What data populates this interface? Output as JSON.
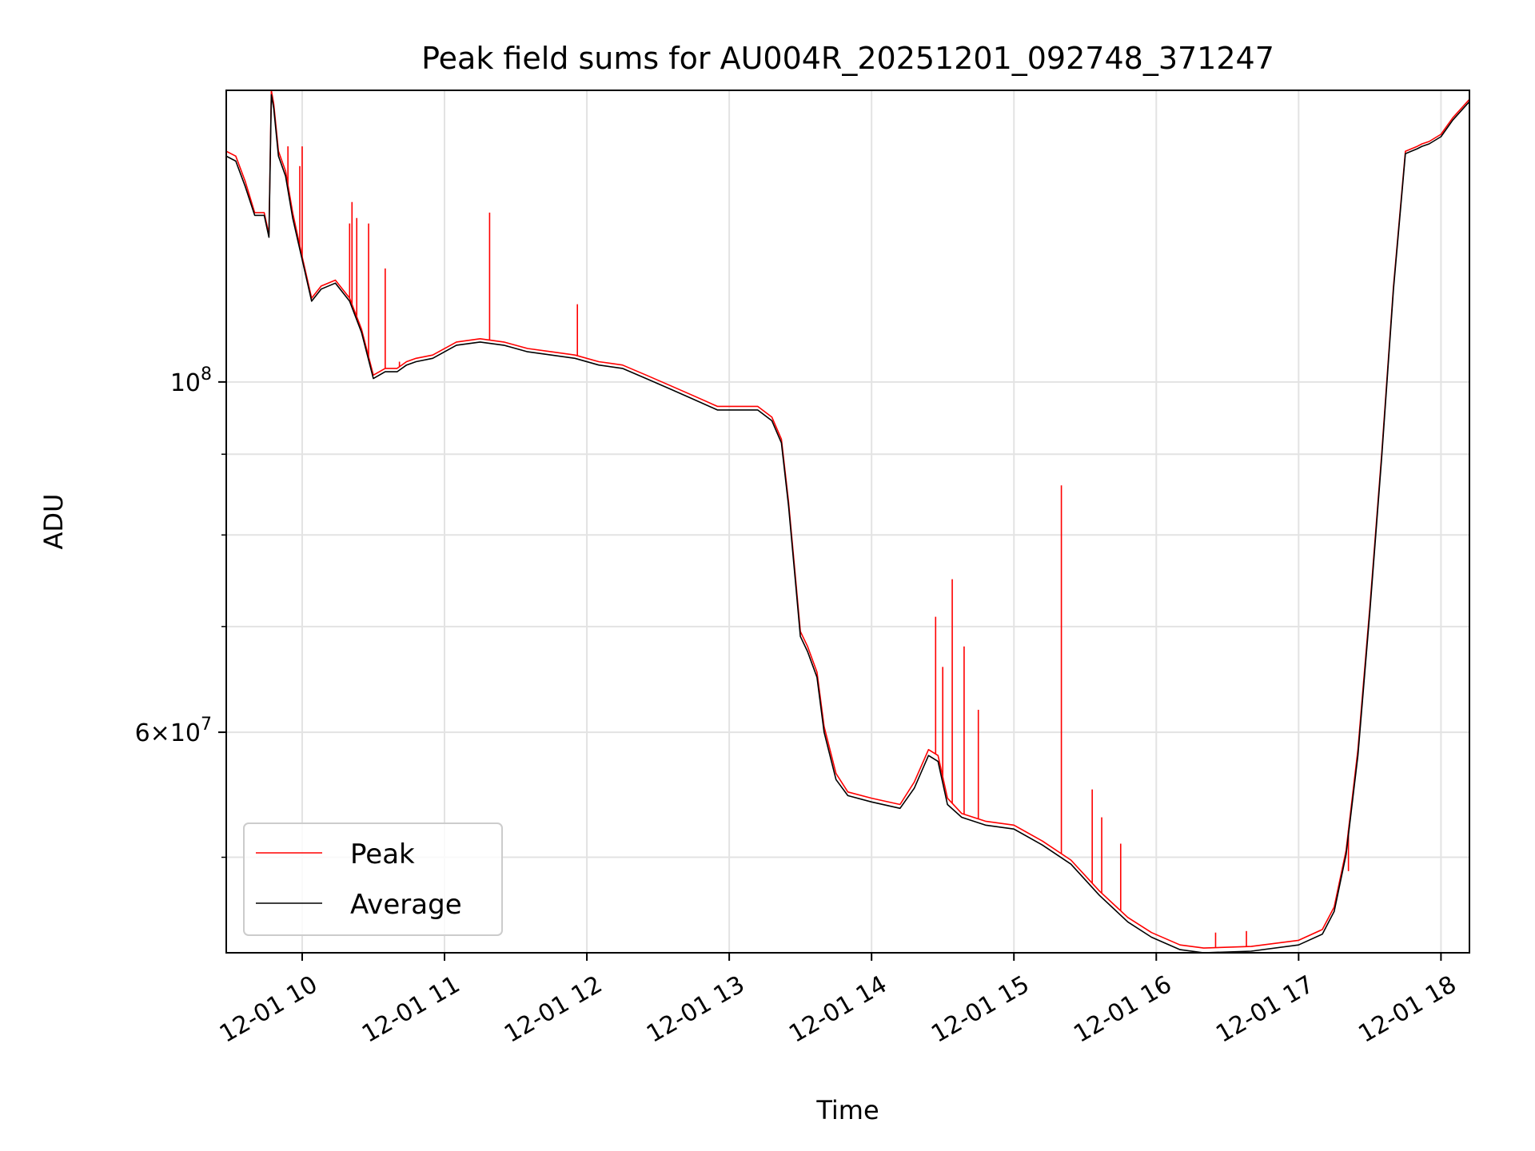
{
  "chart_data": {
    "type": "line",
    "title": "Peak field sums for AU004R_20251201_092748_371247",
    "xlabel": "Time",
    "ylabel": "ADU",
    "yscale": "log",
    "ylim": [
      43500000,
      153000000
    ],
    "xlim": [
      "12-01 09:28",
      "12-01 18:12"
    ],
    "grid": true,
    "legend": {
      "placement": "lower-left",
      "entries": [
        "Peak",
        "Average"
      ]
    },
    "x_ticks": [
      "12-01 10",
      "12-01 11",
      "12-01 12",
      "12-01 13",
      "12-01 14",
      "12-01 15",
      "12-01 16",
      "12-01 17",
      "12-01 18"
    ],
    "y_major_ticks": [
      {
        "value": 100000000,
        "base": "10",
        "exp": "8"
      },
      {
        "value": 60000000,
        "mant": "6",
        "base": "10",
        "exp": "7"
      }
    ],
    "y_minor_ticks": [
      50000000,
      70000000,
      80000000,
      90000000
    ],
    "colors": {
      "peak": "#ff0000",
      "average": "#000000"
    },
    "series": [
      {
        "name": "Peak",
        "color": "#ff0000",
        "x": [
          "12-01 09:28",
          "12-01 09:32",
          "12-01 09:36",
          "12-01 09:40",
          "12-01 09:44",
          "12-01 09:46",
          "12-01 09:47",
          "12-01 09:48",
          "12-01 09:50",
          "12-01 09:53",
          "12-01 09:56",
          "12-01 10:00",
          "12-01 10:04",
          "12-01 10:08",
          "12-01 10:14",
          "12-01 10:20",
          "12-01 10:25",
          "12-01 10:30",
          "12-01 10:35",
          "12-01 10:40",
          "12-01 10:44",
          "12-01 10:48",
          "12-01 10:55",
          "12-01 11:05",
          "12-01 11:15",
          "12-01 11:25",
          "12-01 11:35",
          "12-01 11:45",
          "12-01 11:55",
          "12-01 12:05",
          "12-01 12:15",
          "12-01 12:25",
          "12-01 12:35",
          "12-01 12:45",
          "12-01 12:55",
          "12-01 13:05",
          "12-01 13:12",
          "12-01 13:18",
          "12-01 13:22",
          "12-01 13:25",
          "12-01 13:28",
          "12-01 13:30",
          "12-01 13:33",
          "12-01 13:37",
          "12-01 13:40",
          "12-01 13:45",
          "12-01 13:50",
          "12-01 14:00",
          "12-01 14:12",
          "12-01 14:18",
          "12-01 14:24",
          "12-01 14:28",
          "12-01 14:32",
          "12-01 14:38",
          "12-01 14:48",
          "12-01 15:00",
          "12-01 15:12",
          "12-01 15:24",
          "12-01 15:36",
          "12-01 15:48",
          "12-01 15:58",
          "12-01 16:10",
          "12-01 16:20",
          "12-01 16:40",
          "12-01 17:00",
          "12-01 17:10",
          "12-01 17:15",
          "12-01 17:20",
          "12-01 17:25",
          "12-01 17:30",
          "12-01 17:35",
          "12-01 17:40",
          "12-01 17:45",
          "12-01 17:50",
          "12-01 17:52",
          "12-01 17:55",
          "12-01 18:00",
          "12-01 18:05",
          "12-01 18:12"
        ],
        "y": [
          140000000,
          139000000,
          134000000,
          128000000,
          128000000,
          124000000,
          153000000,
          150000000,
          140000000,
          136000000,
          128000000,
          120000000,
          113000000,
          115000000,
          116000000,
          113000000,
          108000000,
          101000000,
          102000000,
          102000000,
          103000000,
          103500000,
          104000000,
          106000000,
          106500000,
          106000000,
          105000000,
          104500000,
          104000000,
          103000000,
          102500000,
          101000000,
          99500000,
          98000000,
          96500000,
          96500000,
          96500000,
          95000000,
          92000000,
          84000000,
          75000000,
          69500000,
          68000000,
          65500000,
          60500000,
          56500000,
          55000000,
          54500000,
          54000000,
          55800000,
          58500000,
          58000000,
          54500000,
          53300000,
          52700000,
          52400000,
          51200000,
          49800000,
          47600000,
          45800000,
          44800000,
          44000000,
          43800000,
          43900000,
          44300000,
          45000000,
          46500000,
          50500000,
          58500000,
          72000000,
          90000000,
          115000000,
          140000000,
          141000000,
          141500000,
          142000000,
          143500000,
          147000000,
          151000000
        ]
      },
      {
        "name": "Average",
        "color": "#000000",
        "x": [
          "12-01 09:28",
          "12-01 09:32",
          "12-01 09:36",
          "12-01 09:40",
          "12-01 09:44",
          "12-01 09:46",
          "12-01 09:47",
          "12-01 09:48",
          "12-01 09:50",
          "12-01 09:53",
          "12-01 09:56",
          "12-01 10:00",
          "12-01 10:04",
          "12-01 10:08",
          "12-01 10:14",
          "12-01 10:20",
          "12-01 10:25",
          "12-01 10:30",
          "12-01 10:35",
          "12-01 10:40",
          "12-01 10:44",
          "12-01 10:48",
          "12-01 10:55",
          "12-01 11:05",
          "12-01 11:15",
          "12-01 11:25",
          "12-01 11:35",
          "12-01 11:45",
          "12-01 11:55",
          "12-01 12:05",
          "12-01 12:15",
          "12-01 12:25",
          "12-01 12:35",
          "12-01 12:45",
          "12-01 12:55",
          "12-01 13:05",
          "12-01 13:12",
          "12-01 13:18",
          "12-01 13:22",
          "12-01 13:25",
          "12-01 13:28",
          "12-01 13:30",
          "12-01 13:33",
          "12-01 13:37",
          "12-01 13:40",
          "12-01 13:45",
          "12-01 13:50",
          "12-01 14:00",
          "12-01 14:12",
          "12-01 14:18",
          "12-01 14:24",
          "12-01 14:28",
          "12-01 14:32",
          "12-01 14:38",
          "12-01 14:48",
          "12-01 15:00",
          "12-01 15:12",
          "12-01 15:24",
          "12-01 15:36",
          "12-01 15:48",
          "12-01 15:58",
          "12-01 16:10",
          "12-01 16:20",
          "12-01 16:40",
          "12-01 17:00",
          "12-01 17:10",
          "12-01 17:15",
          "12-01 17:20",
          "12-01 17:25",
          "12-01 17:30",
          "12-01 17:35",
          "12-01 17:40",
          "12-01 17:45",
          "12-01 17:50",
          "12-01 17:52",
          "12-01 17:55",
          "12-01 18:00",
          "12-01 18:05",
          "12-01 18:12"
        ],
        "y": [
          139000000,
          138000000,
          133000000,
          127500000,
          127500000,
          123500000,
          152000000,
          149000000,
          139000000,
          135000000,
          127000000,
          119500000,
          112500000,
          114500000,
          115500000,
          112500000,
          107500000,
          100500000,
          101500000,
          101500000,
          102500000,
          103000000,
          103500000,
          105500000,
          106000000,
          105500000,
          104500000,
          104000000,
          103500000,
          102500000,
          102000000,
          100500000,
          99000000,
          97500000,
          96000000,
          96000000,
          96000000,
          94500000,
          91500000,
          83500000,
          74500000,
          69000000,
          67500000,
          65000000,
          60000000,
          56000000,
          54700000,
          54200000,
          53700000,
          55300000,
          58000000,
          57500000,
          54000000,
          53000000,
          52400000,
          52100000,
          50900000,
          49500000,
          47300000,
          45500000,
          44500000,
          43700000,
          43500000,
          43600000,
          44000000,
          44700000,
          46200000,
          50200000,
          58000000,
          71500000,
          89500000,
          114500000,
          139500000,
          140500000,
          141000000,
          141500000,
          143000000,
          146500000,
          150500000
        ]
      }
    ],
    "spikes": {
      "x": [
        "12-01 09:54",
        "12-01 09:59",
        "12-01 10:00",
        "12-01 10:20",
        "12-01 10:21",
        "12-01 10:23",
        "12-01 10:28",
        "12-01 10:35",
        "12-01 10:41",
        "12-01 11:19",
        "12-01 11:56",
        "12-01 14:27",
        "12-01 14:30",
        "12-01 14:34",
        "12-01 14:39",
        "12-01 14:45",
        "12-01 15:20",
        "12-01 15:33",
        "12-01 15:37",
        "12-01 15:45",
        "12-01 16:25",
        "12-01 16:38",
        "12-01 17:21"
      ],
      "y": [
        141000000,
        137000000,
        141000000,
        126000000,
        130000000,
        127000000,
        126000000,
        118000000,
        103000000,
        128000000,
        112000000,
        71000000,
        66000000,
        75000000,
        68000000,
        62000000,
        86000000,
        55200000,
        53000000,
        51000000,
        44800000,
        44900000,
        49000000
      ]
    }
  }
}
